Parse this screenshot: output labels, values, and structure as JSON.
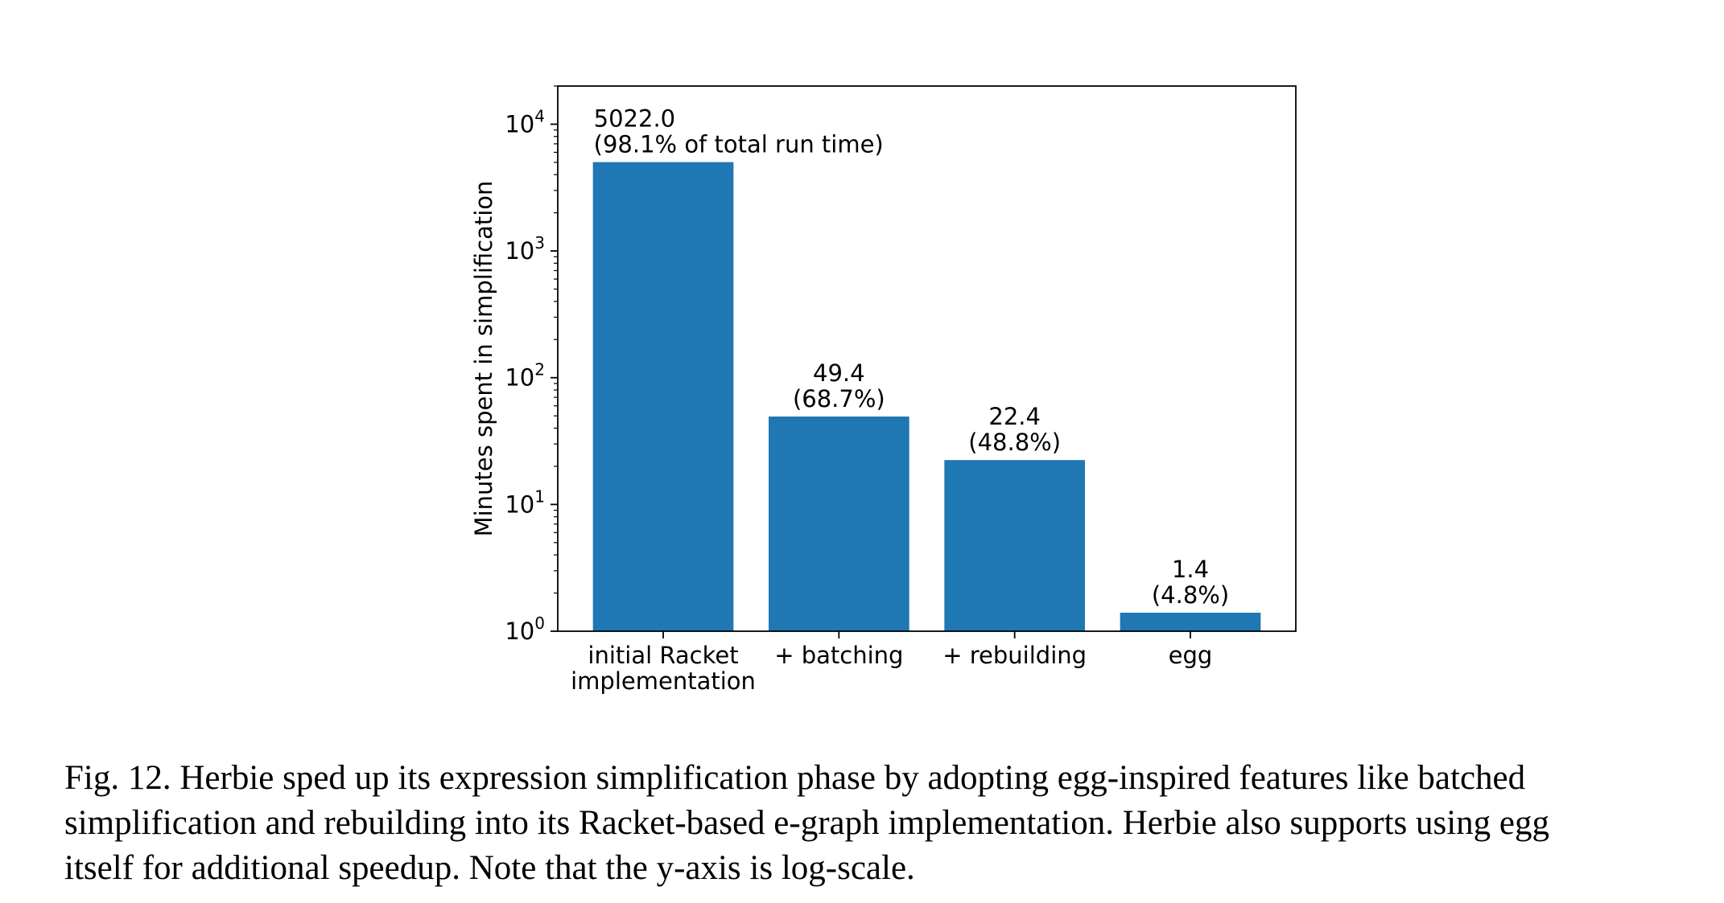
{
  "chart_data": {
    "type": "bar",
    "categories": [
      [
        "initial Racket",
        "implementation"
      ],
      [
        "+ batching"
      ],
      [
        "+ rebuilding"
      ],
      [
        "egg"
      ]
    ],
    "values": [
      5022.0,
      49.4,
      22.4,
      1.4
    ],
    "bar_labels": [
      [
        "5022.0",
        "(98.1% of total run time)"
      ],
      [
        "49.4",
        "(68.7%)"
      ],
      [
        "22.4",
        "(48.8%)"
      ],
      [
        "1.4",
        "(4.8%)"
      ]
    ],
    "ylabel": "Minutes spent in simplification",
    "xlabel": "",
    "yscale": "log",
    "ylim": [
      1,
      20000
    ],
    "yticks": [
      {
        "value": 1,
        "base": "10",
        "exp": "0"
      },
      {
        "value": 10,
        "base": "10",
        "exp": "1"
      },
      {
        "value": 100,
        "base": "10",
        "exp": "2"
      },
      {
        "value": 1000,
        "base": "10",
        "exp": "3"
      },
      {
        "value": 10000,
        "base": "10",
        "exp": "4"
      }
    ],
    "grid": false,
    "bar_color": "#1f77b4"
  },
  "caption": {
    "lines": [
      "Fig. 12.  Herbie sped up its expression simplification phase by adopting egg-inspired features like batched",
      "simplification and rebuilding into its Racket-based e-graph implementation. Herbie also supports using egg",
      "itself for additional speedup. Note that the y-axis is log-scale."
    ]
  }
}
